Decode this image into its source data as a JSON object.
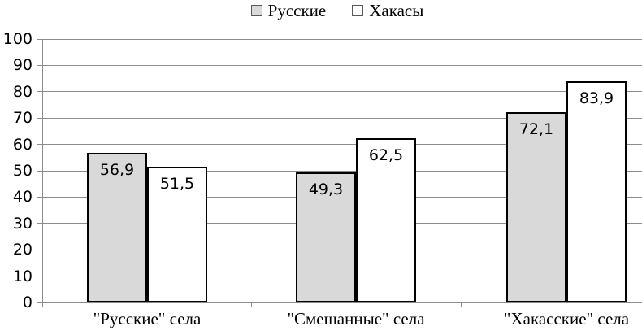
{
  "chart_data": {
    "type": "bar",
    "title": "",
    "categories": [
      "\"Русские\" села",
      "\"Смешанные\" села",
      "\"Хакасские\" села"
    ],
    "series": [
      {
        "name": "Русские",
        "values": [
          56.9,
          49.3,
          72.1
        ],
        "value_labels": [
          "56,9",
          "49,3",
          "72,1"
        ],
        "fill": "#d9d9d9"
      },
      {
        "name": "Хакасы",
        "values": [
          51.5,
          62.5,
          83.9
        ],
        "value_labels": [
          "51,5",
          "62,5",
          "83,9"
        ],
        "fill": "#ffffff"
      }
    ],
    "ylim": [
      0,
      100
    ],
    "ytick_step": 10,
    "ytick_labels": [
      "0",
      "10",
      "20",
      "30",
      "40",
      "50",
      "60",
      "70",
      "80",
      "90",
      "100"
    ],
    "grid": true,
    "legend_position": "top",
    "colors": {
      "bar_border": "#000000",
      "grid_line": "#8c8c8c",
      "axis_line": "#8c8c8c",
      "text": "#000000",
      "legend_swatch_border": "#595959"
    }
  }
}
